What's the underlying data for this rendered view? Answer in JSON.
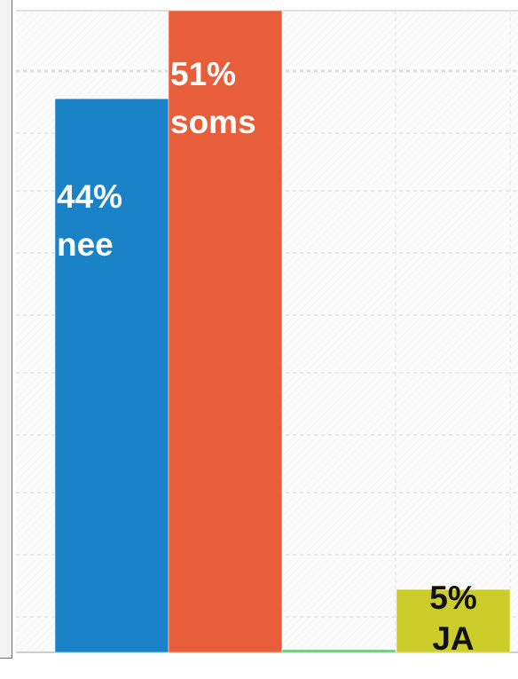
{
  "chart_data": {
    "type": "bar",
    "categories": [
      "nee",
      "soms",
      "",
      "JA"
    ],
    "values": [
      44,
      51,
      0,
      5
    ],
    "ylim": [
      0,
      51
    ],
    "grid": true,
    "colors": [
      "#1a82c6",
      "#e95e3a",
      "#5ec96b",
      "#cccc2b"
    ],
    "labels": [
      {
        "pct": "44%",
        "word": "nee"
      },
      {
        "pct": "51%",
        "word": "soms"
      },
      {
        "pct": "",
        "word": ""
      },
      {
        "pct": "5%",
        "word": "JA"
      }
    ]
  }
}
